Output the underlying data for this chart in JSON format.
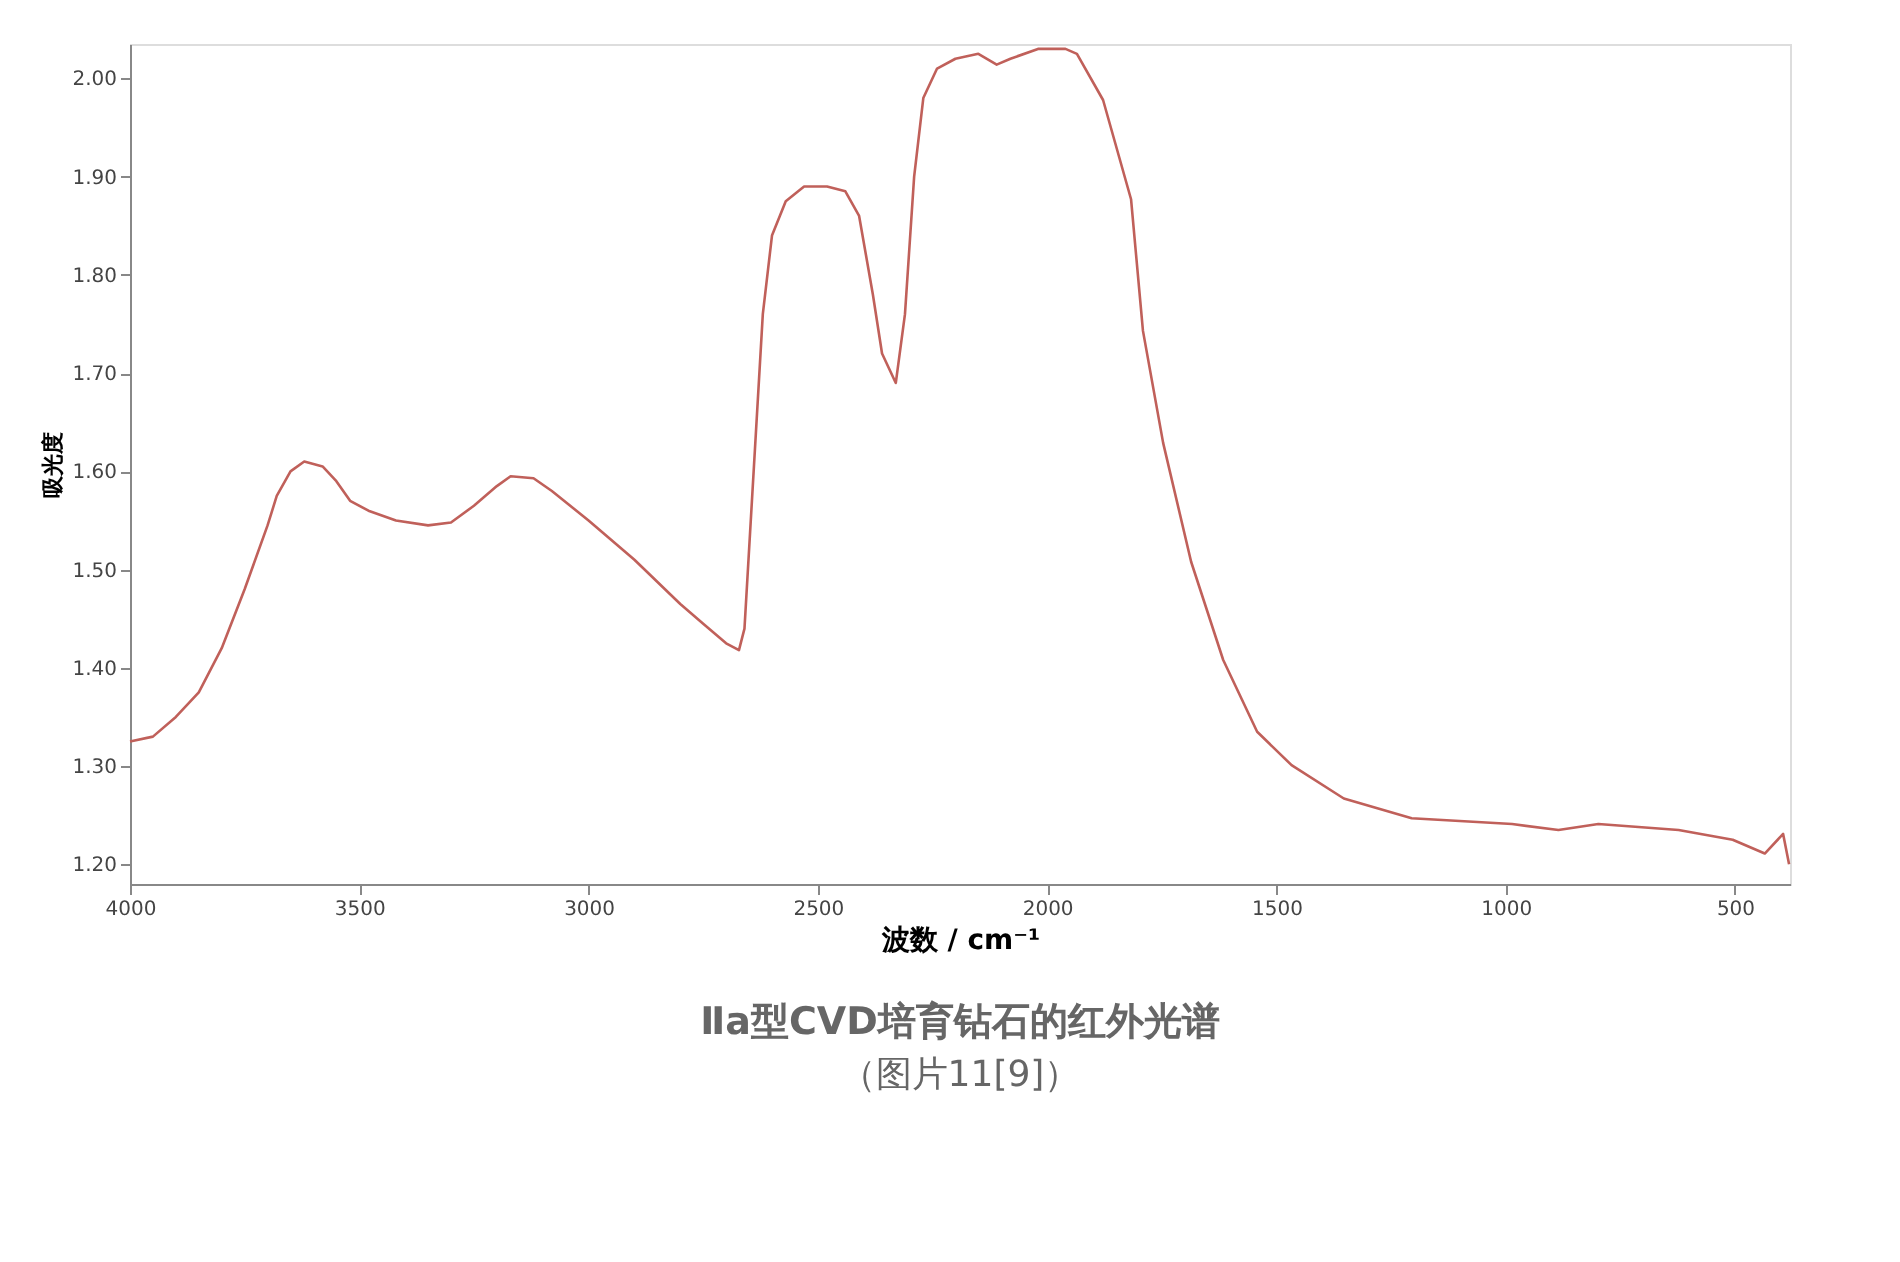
{
  "chart_data": {
    "type": "line",
    "title": "Ⅱa型CVD培育钻石的红外光谱",
    "subtitle": "（图片11[9]）",
    "xlabel": "波数 / cm⁻¹",
    "ylabel": "吸光度",
    "x": [
      4000,
      3950,
      3900,
      3850,
      3800,
      3750,
      3700,
      3680,
      3650,
      3620,
      3580,
      3550,
      3520,
      3480,
      3420,
      3350,
      3300,
      3250,
      3200,
      3170,
      3120,
      3080,
      3000,
      2900,
      2800,
      2750,
      2700,
      2672,
      2660,
      2640,
      2620,
      2600,
      2570,
      2530,
      2480,
      2440,
      2410,
      2380,
      2360,
      2330,
      2310,
      2290,
      2270,
      2240,
      2200,
      2150,
      2110,
      2080,
      2020,
      1960,
      1935,
      1878,
      1817,
      1791,
      1747,
      1686,
      1616,
      1542,
      1467,
      1353,
      1205,
      986,
      885,
      798,
      623,
      505,
      435,
      395,
      382
    ],
    "series": [
      {
        "color": "#c0605a",
        "values": [
          1.325,
          1.33,
          1.35,
          1.375,
          1.42,
          1.48,
          1.545,
          1.575,
          1.6,
          1.61,
          1.605,
          1.59,
          1.57,
          1.56,
          1.55,
          1.545,
          1.548,
          1.565,
          1.585,
          1.595,
          1.593,
          1.58,
          1.55,
          1.51,
          1.465,
          1.445,
          1.425,
          1.418,
          1.44,
          1.6,
          1.76,
          1.84,
          1.875,
          1.89,
          1.89,
          1.885,
          1.86,
          1.78,
          1.72,
          1.69,
          1.76,
          1.9,
          1.98,
          2.01,
          2.02,
          2.025,
          2.014,
          2.02,
          2.03,
          2.03,
          2.025,
          1.978,
          1.877,
          1.743,
          1.629,
          1.508,
          1.408,
          1.335,
          1.301,
          1.267,
          1.247,
          1.241,
          1.235,
          1.241,
          1.235,
          1.225,
          1.211,
          1.231,
          1.2
        ]
      }
    ],
    "xlim": [
      4000,
      380
    ],
    "xticks": [
      4000,
      3500,
      3000,
      2500,
      2000,
      1500,
      1000,
      500
    ],
    "ylim": [
      1.18,
      2.035
    ],
    "yticks": [
      {
        "value": 1.2,
        "label": "1.20"
      },
      {
        "value": 1.3,
        "label": "1.30"
      },
      {
        "value": 1.4,
        "label": "1.40"
      },
      {
        "value": 1.5,
        "label": "1.50"
      },
      {
        "value": 1.6,
        "label": "1.60"
      },
      {
        "value": 1.7,
        "label": "1.70"
      },
      {
        "value": 1.8,
        "label": "1.80"
      },
      {
        "value": 1.9,
        "label": "1.90"
      },
      {
        "value": 2.0,
        "label": "2.00"
      }
    ],
    "grid": false,
    "marker": "none",
    "line_style": "solid"
  }
}
